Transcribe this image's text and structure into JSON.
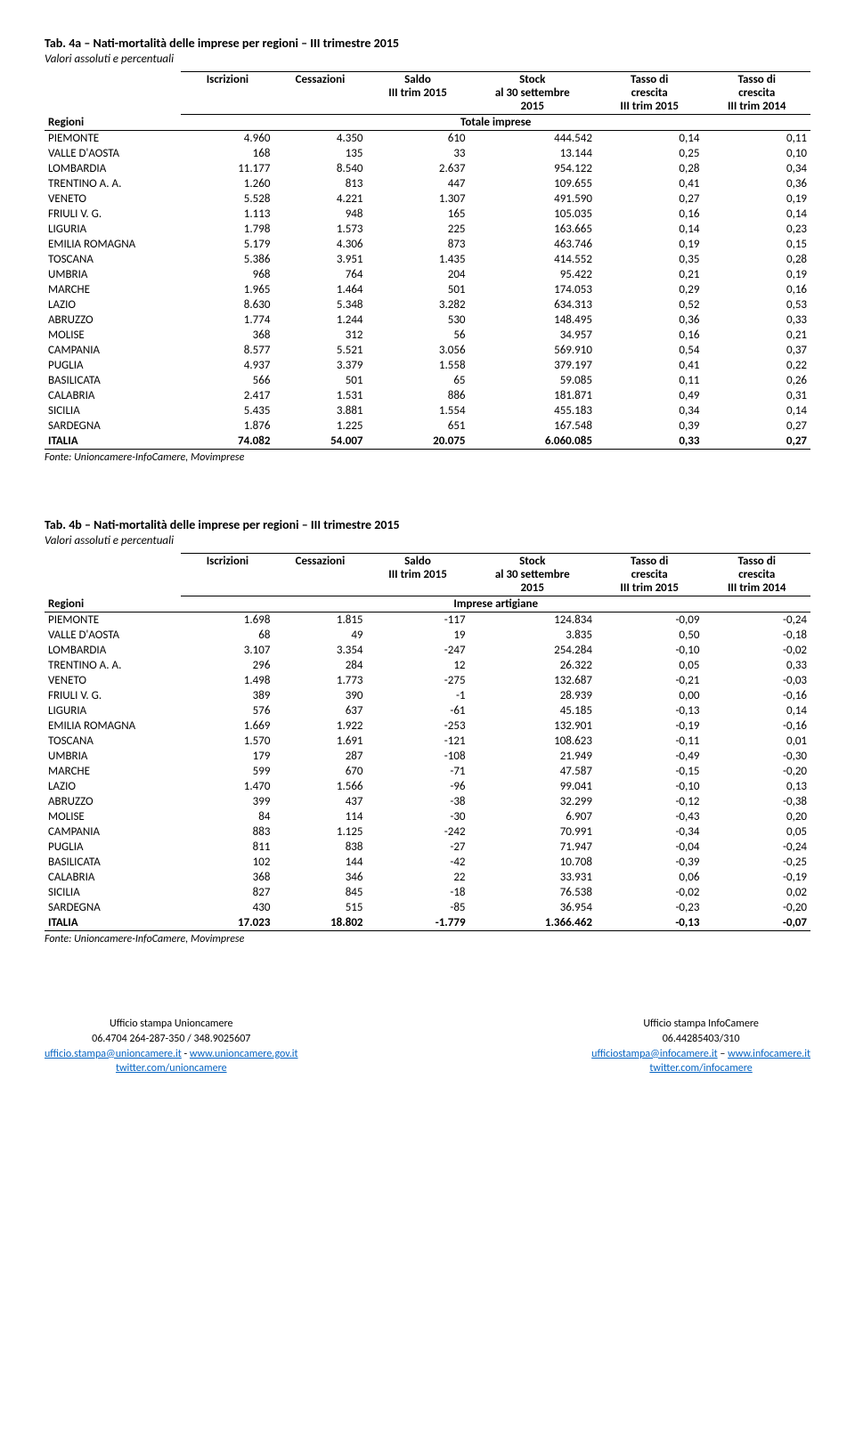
{
  "tableA": {
    "title": "Tab. 4a – Nati-mortalità delle imprese per regioni – III trimestre 2015",
    "subtitle": "Valori assoluti e percentuali",
    "subheader_label": "Totale imprese",
    "rows": [
      {
        "r": "PIEMONTE",
        "i": "4.960",
        "c": "4.350",
        "s": "610",
        "st": "444.542",
        "t1": "0,14",
        "t2": "0,11"
      },
      {
        "r": "VALLE D'AOSTA",
        "i": "168",
        "c": "135",
        "s": "33",
        "st": "13.144",
        "t1": "0,25",
        "t2": "0,10"
      },
      {
        "r": "LOMBARDIA",
        "i": "11.177",
        "c": "8.540",
        "s": "2.637",
        "st": "954.122",
        "t1": "0,28",
        "t2": "0,34"
      },
      {
        "r": "TRENTINO A. A.",
        "i": "1.260",
        "c": "813",
        "s": "447",
        "st": "109.655",
        "t1": "0,41",
        "t2": "0,36"
      },
      {
        "r": "VENETO",
        "i": "5.528",
        "c": "4.221",
        "s": "1.307",
        "st": "491.590",
        "t1": "0,27",
        "t2": "0,19"
      },
      {
        "r": "FRIULI V. G.",
        "i": "1.113",
        "c": "948",
        "s": "165",
        "st": "105.035",
        "t1": "0,16",
        "t2": "0,14"
      },
      {
        "r": "LIGURIA",
        "i": "1.798",
        "c": "1.573",
        "s": "225",
        "st": "163.665",
        "t1": "0,14",
        "t2": "0,23"
      },
      {
        "r": "EMILIA ROMAGNA",
        "i": "5.179",
        "c": "4.306",
        "s": "873",
        "st": "463.746",
        "t1": "0,19",
        "t2": "0,15"
      },
      {
        "r": "TOSCANA",
        "i": "5.386",
        "c": "3.951",
        "s": "1.435",
        "st": "414.552",
        "t1": "0,35",
        "t2": "0,28"
      },
      {
        "r": "UMBRIA",
        "i": "968",
        "c": "764",
        "s": "204",
        "st": "95.422",
        "t1": "0,21",
        "t2": "0,19"
      },
      {
        "r": "MARCHE",
        "i": "1.965",
        "c": "1.464",
        "s": "501",
        "st": "174.053",
        "t1": "0,29",
        "t2": "0,16"
      },
      {
        "r": "LAZIO",
        "i": "8.630",
        "c": "5.348",
        "s": "3.282",
        "st": "634.313",
        "t1": "0,52",
        "t2": "0,53"
      },
      {
        "r": "ABRUZZO",
        "i": "1.774",
        "c": "1.244",
        "s": "530",
        "st": "148.495",
        "t1": "0,36",
        "t2": "0,33"
      },
      {
        "r": "MOLISE",
        "i": "368",
        "c": "312",
        "s": "56",
        "st": "34.957",
        "t1": "0,16",
        "t2": "0,21"
      },
      {
        "r": "CAMPANIA",
        "i": "8.577",
        "c": "5.521",
        "s": "3.056",
        "st": "569.910",
        "t1": "0,54",
        "t2": "0,37"
      },
      {
        "r": "PUGLIA",
        "i": "4.937",
        "c": "3.379",
        "s": "1.558",
        "st": "379.197",
        "t1": "0,41",
        "t2": "0,22"
      },
      {
        "r": "BASILICATA",
        "i": "566",
        "c": "501",
        "s": "65",
        "st": "59.085",
        "t1": "0,11",
        "t2": "0,26"
      },
      {
        "r": "CALABRIA",
        "i": "2.417",
        "c": "1.531",
        "s": "886",
        "st": "181.871",
        "t1": "0,49",
        "t2": "0,31"
      },
      {
        "r": "SICILIA",
        "i": "5.435",
        "c": "3.881",
        "s": "1.554",
        "st": "455.183",
        "t1": "0,34",
        "t2": "0,14"
      },
      {
        "r": "SARDEGNA",
        "i": "1.876",
        "c": "1.225",
        "s": "651",
        "st": "167.548",
        "t1": "0,39",
        "t2": "0,27"
      }
    ],
    "total": {
      "r": "ITALIA",
      "i": "74.082",
      "c": "54.007",
      "s": "20.075",
      "st": "6.060.085",
      "t1": "0,33",
      "t2": "0,27"
    }
  },
  "tableB": {
    "title": "Tab. 4b – Nati-mortalità delle imprese per regioni – III trimestre 2015",
    "subtitle": "Valori assoluti e percentuali",
    "subheader_label": "Imprese artigiane",
    "rows": [
      {
        "r": "PIEMONTE",
        "i": "1.698",
        "c": "1.815",
        "s": "-117",
        "st": "124.834",
        "t1": "-0,09",
        "t2": "-0,24"
      },
      {
        "r": "VALLE D'AOSTA",
        "i": "68",
        "c": "49",
        "s": "19",
        "st": "3.835",
        "t1": "0,50",
        "t2": "-0,18"
      },
      {
        "r": "LOMBARDIA",
        "i": "3.107",
        "c": "3.354",
        "s": "-247",
        "st": "254.284",
        "t1": "-0,10",
        "t2": "-0,02"
      },
      {
        "r": "TRENTINO A. A.",
        "i": "296",
        "c": "284",
        "s": "12",
        "st": "26.322",
        "t1": "0,05",
        "t2": "0,33"
      },
      {
        "r": "VENETO",
        "i": "1.498",
        "c": "1.773",
        "s": "-275",
        "st": "132.687",
        "t1": "-0,21",
        "t2": "-0,03"
      },
      {
        "r": "FRIULI V. G.",
        "i": "389",
        "c": "390",
        "s": "-1",
        "st": "28.939",
        "t1": "0,00",
        "t2": "-0,16"
      },
      {
        "r": "LIGURIA",
        "i": "576",
        "c": "637",
        "s": "-61",
        "st": "45.185",
        "t1": "-0,13",
        "t2": "0,14"
      },
      {
        "r": "EMILIA ROMAGNA",
        "i": "1.669",
        "c": "1.922",
        "s": "-253",
        "st": "132.901",
        "t1": "-0,19",
        "t2": "-0,16"
      },
      {
        "r": "TOSCANA",
        "i": "1.570",
        "c": "1.691",
        "s": "-121",
        "st": "108.623",
        "t1": "-0,11",
        "t2": "0,01"
      },
      {
        "r": "UMBRIA",
        "i": "179",
        "c": "287",
        "s": "-108",
        "st": "21.949",
        "t1": "-0,49",
        "t2": "-0,30"
      },
      {
        "r": "MARCHE",
        "i": "599",
        "c": "670",
        "s": "-71",
        "st": "47.587",
        "t1": "-0,15",
        "t2": "-0,20"
      },
      {
        "r": "LAZIO",
        "i": "1.470",
        "c": "1.566",
        "s": "-96",
        "st": "99.041",
        "t1": "-0,10",
        "t2": "0,13"
      },
      {
        "r": "ABRUZZO",
        "i": "399",
        "c": "437",
        "s": "-38",
        "st": "32.299",
        "t1": "-0,12",
        "t2": "-0,38"
      },
      {
        "r": "MOLISE",
        "i": "84",
        "c": "114",
        "s": "-30",
        "st": "6.907",
        "t1": "-0,43",
        "t2": "0,20"
      },
      {
        "r": "CAMPANIA",
        "i": "883",
        "c": "1.125",
        "s": "-242",
        "st": "70.991",
        "t1": "-0,34",
        "t2": "0,05"
      },
      {
        "r": "PUGLIA",
        "i": "811",
        "c": "838",
        "s": "-27",
        "st": "71.947",
        "t1": "-0,04",
        "t2": "-0,24"
      },
      {
        "r": "BASILICATA",
        "i": "102",
        "c": "144",
        "s": "-42",
        "st": "10.708",
        "t1": "-0,39",
        "t2": "-0,25"
      },
      {
        "r": "CALABRIA",
        "i": "368",
        "c": "346",
        "s": "22",
        "st": "33.931",
        "t1": "0,06",
        "t2": "-0,19"
      },
      {
        "r": "SICILIA",
        "i": "827",
        "c": "845",
        "s": "-18",
        "st": "76.538",
        "t1": "-0,02",
        "t2": "0,02"
      },
      {
        "r": "SARDEGNA",
        "i": "430",
        "c": "515",
        "s": "-85",
        "st": "36.954",
        "t1": "-0,23",
        "t2": "-0,20"
      }
    ],
    "total": {
      "r": "ITALIA",
      "i": "17.023",
      "c": "18.802",
      "s": "-1.779",
      "st": "1.366.462",
      "t1": "-0,13",
      "t2": "-0,07"
    }
  },
  "headers": {
    "regioni": "Regioni",
    "iscrizioni": "Iscrizioni",
    "cessazioni": "Cessazioni",
    "saldo1": "Saldo",
    "saldo2": "III trim 2015",
    "stock1": "Stock",
    "stock2": "al 30 settembre",
    "stock3": "2015",
    "tasso1_1": "Tasso di",
    "tasso1_2": "crescita",
    "tasso1_3": "III trim 2015",
    "tasso2_1": "Tasso di",
    "tasso2_2": "crescita",
    "tasso2_3": "III trim 2014"
  },
  "source": "Fonte: Unioncamere-InfoCamere, Movimprese",
  "footer": {
    "left": {
      "l1": "Ufficio stampa Unioncamere",
      "l2": "06.4704 264-287-350 / 348.9025607",
      "l3a": "ufficio.stampa@unioncamere.it",
      "l3sep": " - ",
      "l3b": "www.unioncamere.gov.it",
      "l4a": "twitter.com/unioncamere"
    },
    "right": {
      "l1": "Ufficio stampa InfoCamere",
      "l2": "06.44285403/310",
      "l3a": "ufficiostampa@infocamere.it",
      "l3sep": " – ",
      "l3b": "www.infocamere.it",
      "l4a": "twitter.com/infocamere"
    }
  }
}
